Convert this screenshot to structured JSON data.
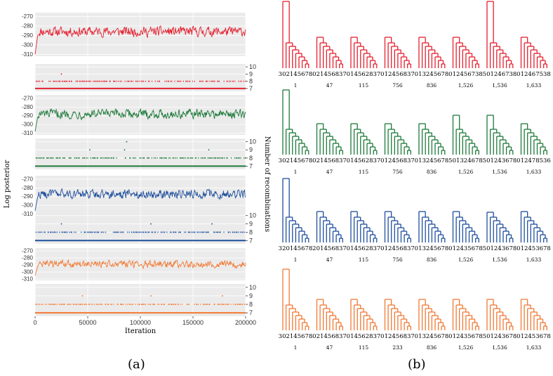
{
  "figure": {
    "label_a": "(a)",
    "label_b": "(b)"
  },
  "colors": {
    "red": "#e4202e",
    "green": "#1d7a3a",
    "blue": "#1f4f9c",
    "orange": "#f07a35",
    "panel_bg": "#ebebeb",
    "grid": "#ffffff"
  },
  "panel_a": {
    "ylabel_left": "Log posterior",
    "ylabel_right": "Number of recombinations",
    "xlabel": "Iteration",
    "x_ticks": [
      "0",
      "50000",
      "100000",
      "150000",
      "200000"
    ],
    "x_tick_values": [
      0,
      50000,
      100000,
      150000,
      200000
    ],
    "xlim": [
      0,
      200000
    ],
    "logpost_ticks": [
      "-270",
      "-280",
      "-290",
      "-300",
      "-310"
    ],
    "logpost_tick_values": [
      -270,
      -280,
      -290,
      -300,
      -310
    ],
    "logpost_ylim": [
      -312,
      -266
    ],
    "recomb_ticks": [
      "10",
      "9",
      "8",
      "7"
    ],
    "recomb_tick_values": [
      10,
      9,
      8,
      7
    ],
    "recomb_ylim": [
      6.6,
      10.4
    ]
  },
  "chart_data": [
    {
      "type": "line",
      "panel": "log-posterior",
      "color_key": "red",
      "start": -310,
      "mean": -286,
      "spread": 5,
      "n_points": 400,
      "ylim": [
        -312,
        -266
      ],
      "xlim": [
        0,
        200000
      ]
    },
    {
      "type": "scatter",
      "panel": "recombinations",
      "color_key": "red",
      "baseline": 7,
      "dense_level": 8,
      "sparse_points": [
        [
          25000,
          9
        ]
      ],
      "ylim": [
        6.6,
        10.4
      ],
      "xlim": [
        0,
        200000
      ]
    },
    {
      "type": "line",
      "panel": "log-posterior",
      "color_key": "green",
      "start": -308,
      "mean": -288,
      "spread": 5,
      "n_points": 400,
      "ylim": [
        -312,
        -266
      ],
      "xlim": [
        0,
        200000
      ]
    },
    {
      "type": "scatter",
      "panel": "recombinations",
      "color_key": "green",
      "baseline": 7,
      "dense_level": 8,
      "sparse_points": [
        [
          52000,
          9
        ],
        [
          85000,
          9
        ],
        [
          87000,
          10
        ],
        [
          165000,
          9
        ]
      ],
      "ylim": [
        6.6,
        10.4
      ],
      "xlim": [
        0,
        200000
      ]
    },
    {
      "type": "line",
      "panel": "log-posterior",
      "color_key": "blue",
      "start": -306,
      "mean": -287,
      "spread": 5,
      "n_points": 400,
      "ylim": [
        -312,
        -266
      ],
      "xlim": [
        0,
        200000
      ]
    },
    {
      "type": "scatter",
      "panel": "recombinations",
      "color_key": "blue",
      "baseline": 7,
      "dense_level": 8,
      "sparse_points": [
        [
          25000,
          9
        ],
        [
          110000,
          9
        ],
        [
          168000,
          9
        ]
      ],
      "ylim": [
        6.6,
        10.4
      ],
      "xlim": [
        0,
        200000
      ]
    },
    {
      "type": "line",
      "panel": "log-posterior",
      "color_key": "orange",
      "start": -305,
      "mean": -289,
      "spread": 5,
      "n_points": 400,
      "ylim": [
        -312,
        -266
      ],
      "xlim": [
        0,
        200000
      ]
    },
    {
      "type": "scatter",
      "panel": "recombinations",
      "color_key": "orange",
      "baseline": 7,
      "dense_level": 8,
      "sparse_points": [
        [
          45000,
          9
        ],
        [
          110000,
          9
        ],
        [
          178000,
          9
        ]
      ],
      "ylim": [
        6.6,
        10.4
      ],
      "xlim": [
        0,
        200000
      ]
    }
  ],
  "panel_b": {
    "rows": [
      {
        "color_key": "red",
        "trees": [
          {
            "leaves": "30214 5678",
            "index": "1"
          },
          {
            "leaves": "02145 6837",
            "index": "47"
          },
          {
            "leaves": "01456 2837",
            "index": "115"
          },
          {
            "leaves": "01245 6837",
            "index": "756"
          },
          {
            "leaves": "01324 5678",
            "index": "836"
          },
          {
            "leaves": "01245 6738",
            "index": "1,526"
          },
          {
            "leaves": "50124 6738",
            "index": "1,536"
          },
          {
            "leaves": "01246 7538",
            "index": "1,633"
          }
        ]
      },
      {
        "color_key": "green",
        "trees": [
          {
            "leaves": "30214 5678",
            "index": "1"
          },
          {
            "leaves": "02145 6837",
            "index": "47"
          },
          {
            "leaves": "01456 2837",
            "index": "115"
          },
          {
            "leaves": "01245 6837",
            "index": "756"
          },
          {
            "leaves": "01324 5678",
            "index": "836"
          },
          {
            "leaves": "50132 4678",
            "index": "1,526"
          },
          {
            "leaves": "50124 3678",
            "index": "1,536"
          },
          {
            "leaves": "01247 8536",
            "index": "1,633"
          }
        ]
      },
      {
        "color_key": "blue",
        "trees": [
          {
            "leaves": "32014 5678",
            "index": "1"
          },
          {
            "leaves": "20145 6837",
            "index": "47"
          },
          {
            "leaves": "01456 2837",
            "index": "115"
          },
          {
            "leaves": "01245 6837",
            "index": "756"
          },
          {
            "leaves": "01324 5678",
            "index": "836"
          },
          {
            "leaves": "01243 5678",
            "index": "1,526"
          },
          {
            "leaves": "50124 3678",
            "index": "1,536"
          },
          {
            "leaves": "01245 3678",
            "index": "1,633"
          }
        ]
      },
      {
        "color_key": "orange",
        "trees": [
          {
            "leaves": "30214 5678",
            "index": "1"
          },
          {
            "leaves": "02145 6837",
            "index": "47"
          },
          {
            "leaves": "01456 2837",
            "index": "115"
          },
          {
            "leaves": "01245 6837",
            "index": "233"
          },
          {
            "leaves": "01324 5678",
            "index": "836"
          },
          {
            "leaves": "01243 5678",
            "index": "1,526"
          },
          {
            "leaves": "50124 3678",
            "index": "1,536"
          },
          {
            "leaves": "01245 3678",
            "index": "1,633"
          }
        ]
      }
    ]
  }
}
